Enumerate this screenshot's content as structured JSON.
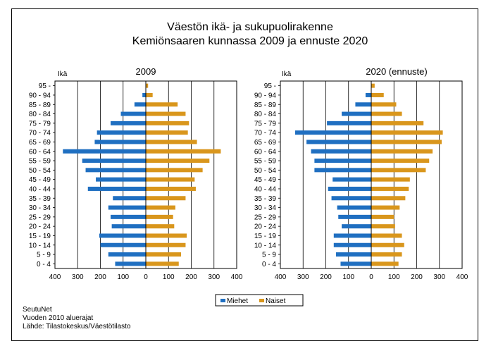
{
  "title_line1": "Väestön ikä- ja sukupuolirakenne",
  "title_line2": "Kemiönsaaren kunnassa 2009 ja ennuste 2020",
  "legend": {
    "males": "Miehet",
    "females": "Naiset"
  },
  "colors": {
    "males": "#1f6fc1",
    "females": "#d9961c"
  },
  "footer": [
    "SeutuNet",
    "Vuoden 2010 aluerajat",
    "Lähde: Tilastokeskus/Väestötilasto"
  ],
  "chart_data": {
    "type": "bar",
    "orientation": "horizontal-population-pyramid",
    "categories": [
      "0 - 4",
      "5 - 9",
      "10 - 14",
      "15 - 19",
      "20 - 24",
      "25 - 29",
      "30 - 34",
      "35 - 39",
      "40 - 44",
      "45 - 49",
      "50 - 54",
      "55 - 59",
      "60 - 64",
      "65 - 69",
      "70 - 74",
      "75 - 79",
      "80 - 84",
      "85 - 89",
      "90 - 94",
      "95 -"
    ],
    "xlim": [
      -400,
      400
    ],
    "xticks": [
      "400",
      "300",
      "200",
      "100",
      "0",
      "100",
      "200",
      "300",
      "400"
    ],
    "ylabel": "Ikä",
    "charts": [
      {
        "title": "2009",
        "series": [
          {
            "name": "Miehet",
            "values": [
              135,
              165,
              200,
              205,
              150,
              155,
              165,
              145,
              255,
              220,
              265,
              280,
              365,
              225,
              215,
              155,
              110,
              50,
              15,
              0
            ]
          },
          {
            "name": "Naiset",
            "values": [
              145,
              155,
              175,
              180,
              125,
              120,
              130,
              175,
              220,
              215,
              250,
              280,
              330,
              225,
              185,
              190,
              175,
              140,
              30,
              10
            ]
          }
        ]
      },
      {
        "title": "2020 (ennuste)",
        "series": [
          {
            "name": "Miehet",
            "values": [
              135,
              155,
              165,
              165,
              130,
              145,
              150,
              175,
              190,
              170,
              250,
              250,
              265,
              285,
              335,
              195,
              130,
              70,
              25,
              0
            ]
          },
          {
            "name": "Naiset",
            "values": [
              120,
              135,
              145,
              135,
              105,
              100,
              125,
              150,
              165,
              170,
              240,
              255,
              270,
              310,
              315,
              230,
              135,
              110,
              55,
              15
            ]
          }
        ]
      }
    ]
  }
}
